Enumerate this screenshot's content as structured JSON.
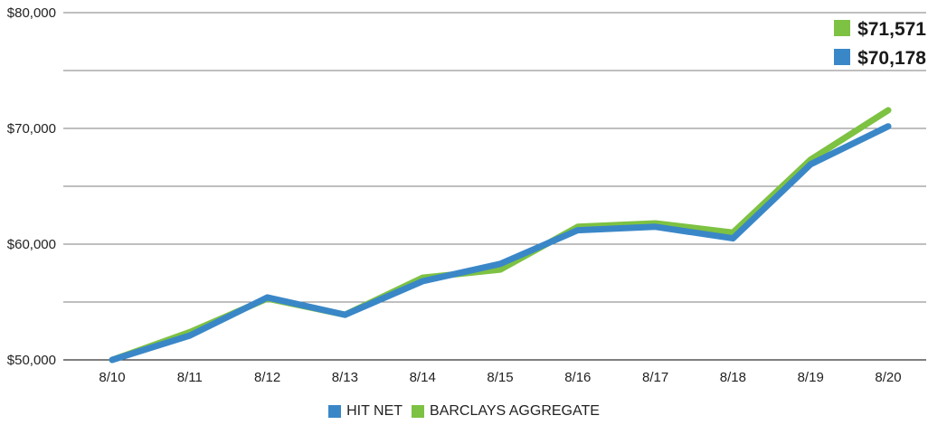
{
  "chart_data": {
    "type": "line",
    "categories": [
      "8/10",
      "8/11",
      "8/12",
      "8/13",
      "8/14",
      "8/15",
      "8/16",
      "8/17",
      "8/18",
      "8/19",
      "8/20"
    ],
    "series": [
      {
        "name": "BARCLAYS AGGREGATE",
        "color": "#7dc242",
        "values": [
          50000,
          52400,
          55300,
          53900,
          57100,
          57800,
          61500,
          61800,
          61000,
          67300,
          71571
        ],
        "end_label": "$71,571"
      },
      {
        "name": "HIT NET",
        "color": "#3a87c8",
        "values": [
          50000,
          52100,
          55400,
          53900,
          56800,
          58300,
          61200,
          61500,
          60500,
          66900,
          70178
        ],
        "end_label": "$70,178"
      }
    ],
    "yticks": [
      "$50,000",
      "$60,000",
      "$70,000",
      "$80,000"
    ],
    "ylim": [
      50000,
      80000
    ],
    "grid": true,
    "legend_position": "bottom-center",
    "legend": [
      {
        "label": "HIT NET",
        "color": "#3a87c8"
      },
      {
        "label": "BARCLAYS AGGREGATE",
        "color": "#7dc242"
      }
    ]
  }
}
